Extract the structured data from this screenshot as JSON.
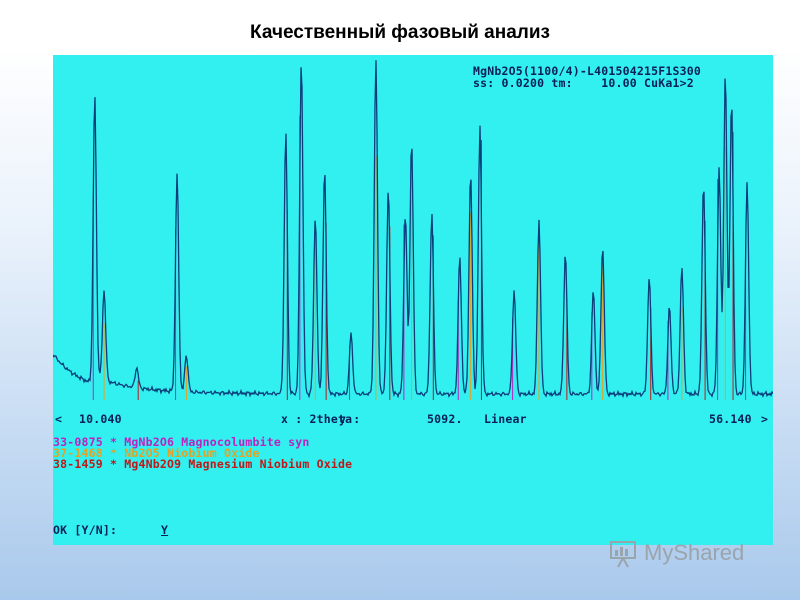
{
  "slide": {
    "title": "Качественный фазовый анализ"
  },
  "header": {
    "line1": "MgNb2O5(1100/4)-L401504215F1S300",
    "line2": "ss: 0.0200 tm:    10.00 CuKa1>2"
  },
  "axis": {
    "left_arrow": "<",
    "min": "10.040",
    "x_label": "x : 2theta",
    "y_label": "y :",
    "y_value": "5092.",
    "scale": "Linear",
    "max": "56.140",
    "right_arrow": ">"
  },
  "phases": [
    {
      "text": "33-0875 * MgNb2O6 Magnocolumbite syn",
      "color": "#c020c0"
    },
    {
      "text": "37-1468 * Nb2O5 Niobium Oxide",
      "color": "#e8a020"
    },
    {
      "text": "38-1459 * Mg4Nb2O9 Magnesium Niobium Oxide",
      "color": "#c01818"
    }
  ],
  "prompt": {
    "label": "OK [Y/N]:",
    "value": "Y"
  },
  "watermark": {
    "text": "MyShared"
  },
  "colors": {
    "screen": "#33f0f0",
    "trace": "#0b3d7a",
    "text": "#0b1f5a"
  },
  "chart_data": {
    "type": "line",
    "x_range": [
      10.04,
      56.14
    ],
    "x_unit": "2theta",
    "y_max": 5092,
    "scale": "Linear",
    "peaks_2theta": [
      12.6,
      13.2,
      15.3,
      17.9,
      18.5,
      24.9,
      25.9,
      26.8,
      27.4,
      29.1,
      30.7,
      31.5,
      32.6,
      33.0,
      34.3,
      36.1,
      36.8,
      37.4,
      39.6,
      41.2,
      42.9,
      44.7,
      45.3,
      48.3,
      49.6,
      50.4,
      51.8,
      52.8,
      53.2,
      53.6,
      54.6
    ],
    "series": [
      {
        "name": "MgNb2O6 Magnocolumbite syn",
        "color": "#c020c0"
      },
      {
        "name": "Nb2O5 Niobium Oxide",
        "color": "#e8a020"
      },
      {
        "name": "Mg4Nb2O9 Magnesium Niobium Oxide",
        "color": "#c01818"
      }
    ]
  }
}
